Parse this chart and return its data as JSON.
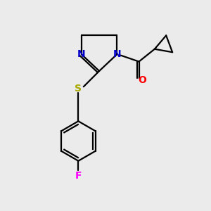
{
  "bg_color": "#ebebeb",
  "bond_color": "#000000",
  "N_color": "#0000cc",
  "O_color": "#ff0000",
  "S_color": "#aaaa00",
  "F_color": "#ff00ff",
  "line_width": 1.6,
  "figsize": [
    3.0,
    3.0
  ],
  "dpi": 100,
  "xlim": [
    0,
    10
  ],
  "ylim": [
    0,
    10
  ]
}
